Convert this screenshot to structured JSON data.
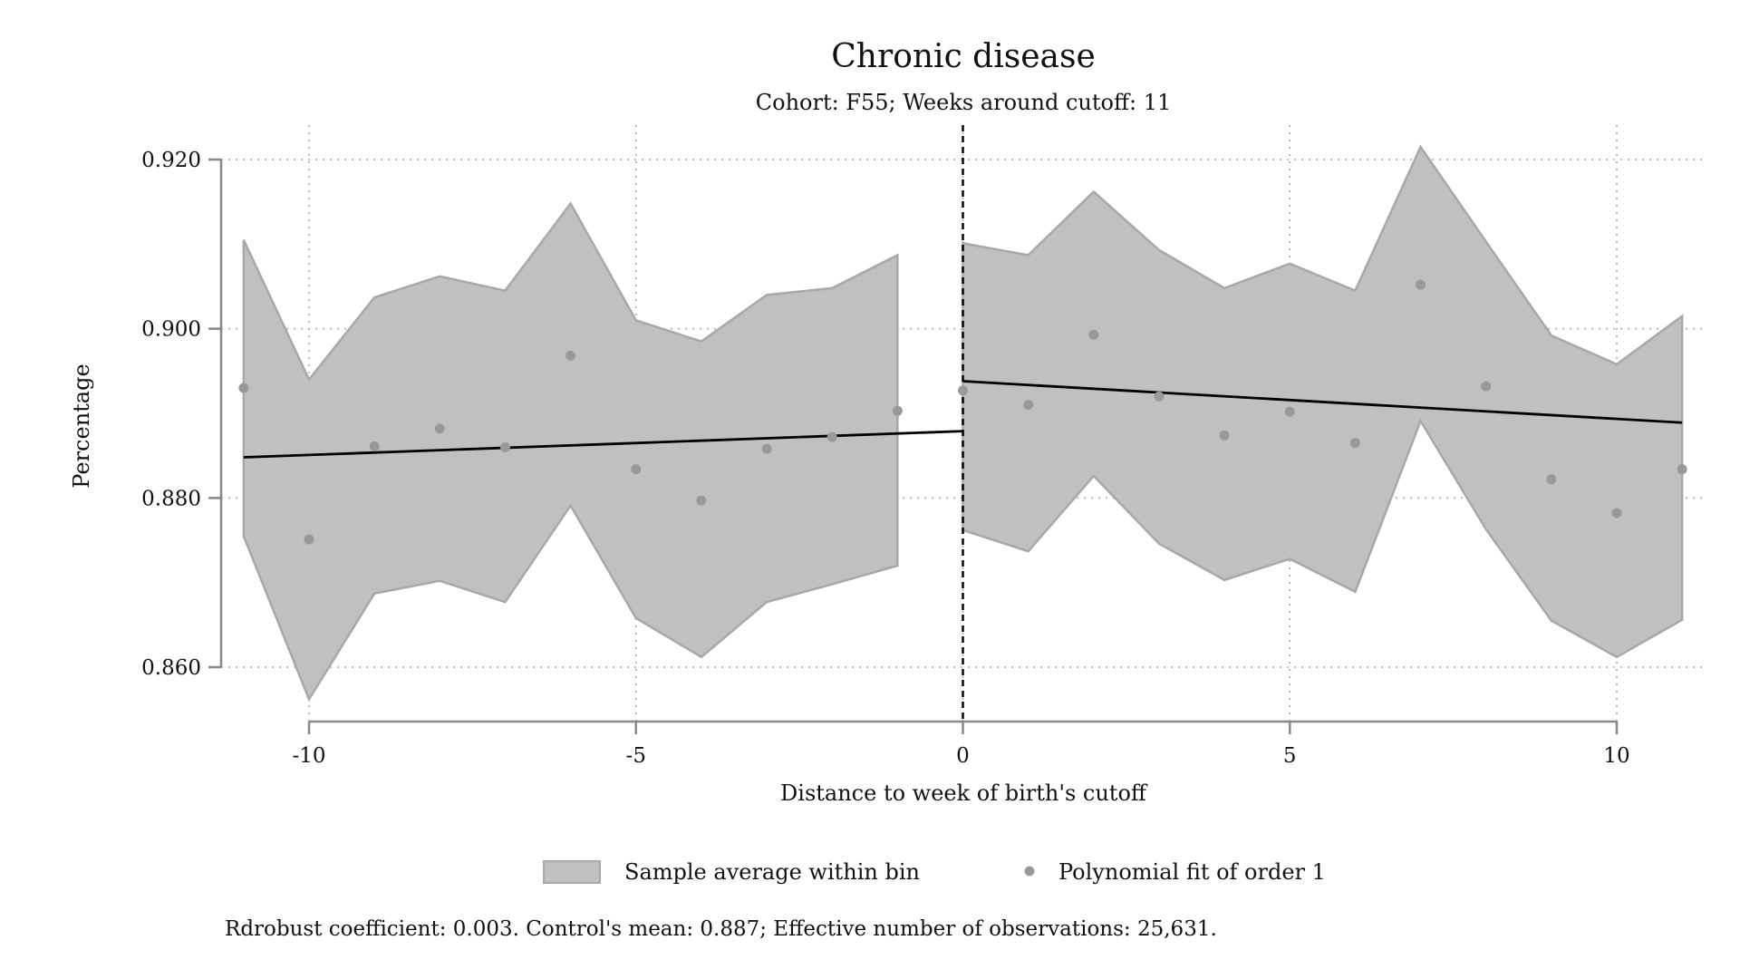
{
  "chart_data": {
    "type": "scatter",
    "title": "Chronic disease",
    "subtitle": "Cohort: F55; Weeks around cutoff: 11",
    "xlabel": "Distance to week of birth's cutoff",
    "ylabel": "Percentage",
    "xlim": [
      -11,
      11
    ],
    "ylim": [
      0.86,
      0.92
    ],
    "x_ticks": [
      -10,
      -5,
      0,
      5,
      10
    ],
    "x_tick_labels": [
      "-10",
      "-5",
      "0",
      "5",
      "10"
    ],
    "y_ticks": [
      0.86,
      0.88,
      0.9,
      0.92
    ],
    "y_tick_labels": [
      "0.860",
      "0.880",
      "0.900",
      "0.920"
    ],
    "grid": true,
    "cutoff_line_x": 0,
    "legend_position": "bottom",
    "legend": {
      "band_label": "Sample average within bin",
      "points_label": "Polynomial fit of order 1"
    },
    "note": "Rdrobust coefficient: 0.003. Control's mean: 0.887; Effective number of observations: 25,631.",
    "colors": {
      "band_fill": "#c0c0c0",
      "band_edge": "#a8a8a8",
      "points": "#999999",
      "fit_line": "#000000",
      "cutoff_line": "#000000",
      "grid": "#aaaaaa",
      "axis": "#888888"
    },
    "points": {
      "x": [
        -11,
        -10,
        -9,
        -8,
        -7,
        -6,
        -5,
        -4,
        -3,
        -2,
        -1,
        0,
        1,
        2,
        3,
        4,
        5,
        6,
        7,
        8,
        9,
        10,
        11
      ],
      "y": [
        0.893,
        0.8751,
        0.8861,
        0.8882,
        0.886,
        0.8968,
        0.8834,
        0.8797,
        0.8858,
        0.8872,
        0.8903,
        0.8927,
        0.891,
        0.8993,
        0.892,
        0.8874,
        0.8902,
        0.8865,
        0.9052,
        0.8932,
        0.8822,
        0.8782,
        0.8834
      ]
    },
    "ci_left": {
      "x": [
        -11,
        -10,
        -9,
        -8,
        -7,
        -6,
        -5,
        -4,
        -3,
        -2,
        -1
      ],
      "upper": [
        0.9105,
        0.894,
        0.9037,
        0.9062,
        0.9045,
        0.9148,
        0.901,
        0.8985,
        0.904,
        0.9048,
        0.9087
      ],
      "lower": [
        0.8755,
        0.8562,
        0.8687,
        0.8702,
        0.8677,
        0.8791,
        0.8658,
        0.8612,
        0.8677,
        0.8698,
        0.872
      ]
    },
    "ci_right": {
      "x": [
        0,
        1,
        2,
        3,
        4,
        5,
        6,
        7,
        8,
        9,
        10,
        11
      ],
      "upper": [
        0.9101,
        0.9087,
        0.9162,
        0.9093,
        0.9048,
        0.9077,
        0.9045,
        0.9215,
        0.9103,
        0.8992,
        0.8958,
        0.9015
      ],
      "lower": [
        0.8762,
        0.8737,
        0.8826,
        0.8746,
        0.8703,
        0.8728,
        0.8689,
        0.8891,
        0.8763,
        0.8655,
        0.8612,
        0.8656
      ]
    },
    "fit_left": {
      "x": [
        -11,
        0
      ],
      "y": [
        0.8848,
        0.8879
      ]
    },
    "fit_right": {
      "x": [
        0,
        11
      ],
      "y": [
        0.8938,
        0.8889
      ]
    }
  }
}
